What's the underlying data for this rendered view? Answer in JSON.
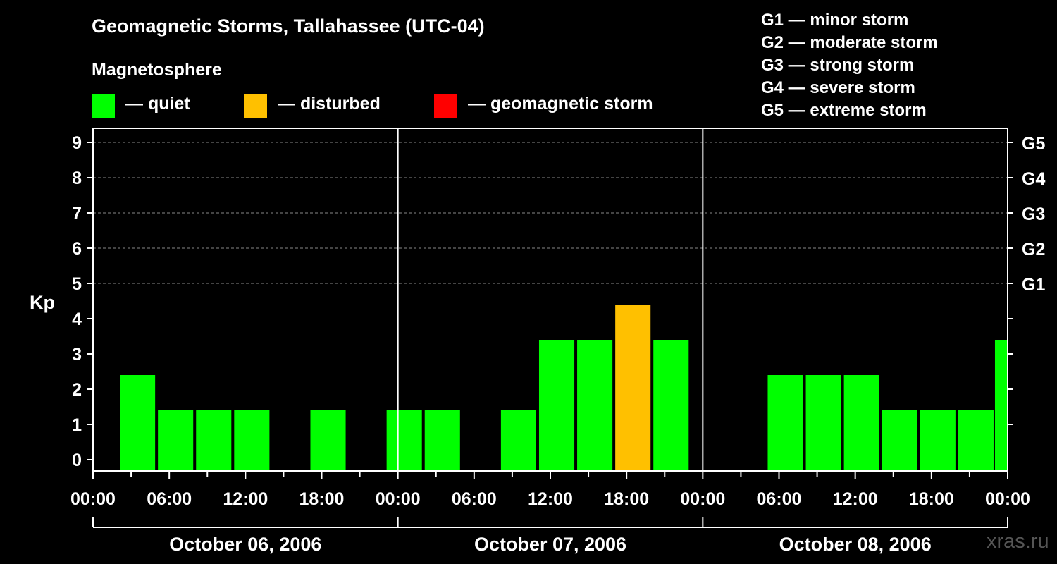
{
  "title": "Geomagnetic Storms, Tallahassee (UTC-04)",
  "magnetosphere_label": "Magnetosphere",
  "legend": [
    {
      "label": "— quiet",
      "color": "#00ff00"
    },
    {
      "label": "— disturbed",
      "color": "#ffc000"
    },
    {
      "label": "— geomagnetic storm",
      "color": "#ff0000"
    }
  ],
  "g_legend": [
    "G1 — minor storm",
    "G2 — moderate storm",
    "G3 — strong storm",
    "G4 — severe storm",
    "G5 — extreme storm"
  ],
  "watermark": "xras.ru",
  "colors": {
    "quiet": "#00ff00",
    "disturbed": "#ffc000",
    "storm": "#ff0000",
    "grid": "#888888"
  },
  "chart_data": {
    "type": "bar",
    "title": "Geomagnetic Storms, Tallahassee (UTC-04)",
    "ylabel": "Kp",
    "ylim": [
      0,
      9
    ],
    "y_ticks": [
      "0",
      "1",
      "2",
      "3",
      "4",
      "5",
      "6",
      "7",
      "8",
      "9"
    ],
    "g_scale": [
      {
        "kp": 5,
        "label": "G1"
      },
      {
        "kp": 6,
        "label": "G2"
      },
      {
        "kp": 7,
        "label": "G3"
      },
      {
        "kp": 8,
        "label": "G4"
      },
      {
        "kp": 9,
        "label": "G5"
      }
    ],
    "x_range_hours": [
      0,
      72
    ],
    "x_tick_labels": [
      {
        "hour": 0,
        "label": "00:00"
      },
      {
        "hour": 6,
        "label": "06:00"
      },
      {
        "hour": 12,
        "label": "12:00"
      },
      {
        "hour": 18,
        "label": "18:00"
      },
      {
        "hour": 24,
        "label": "00:00"
      },
      {
        "hour": 30,
        "label": "06:00"
      },
      {
        "hour": 36,
        "label": "12:00"
      },
      {
        "hour": 42,
        "label": "18:00"
      },
      {
        "hour": 48,
        "label": "00:00"
      },
      {
        "hour": 54,
        "label": "06:00"
      },
      {
        "hour": 60,
        "label": "12:00"
      },
      {
        "hour": 66,
        "label": "18:00"
      },
      {
        "hour": 72,
        "label": "00:00"
      }
    ],
    "days": [
      {
        "label": "October 06, 2006",
        "start": 0,
        "end": 24
      },
      {
        "label": "October 07, 2006",
        "start": 24,
        "end": 48
      },
      {
        "label": "October 08, 2006",
        "start": 48,
        "end": 72
      }
    ],
    "bars": [
      {
        "start": 2,
        "end": 5,
        "kp": 2,
        "level": "quiet"
      },
      {
        "start": 5,
        "end": 8,
        "kp": 1,
        "level": "quiet"
      },
      {
        "start": 8,
        "end": 11,
        "kp": 1,
        "level": "quiet"
      },
      {
        "start": 11,
        "end": 14,
        "kp": 1,
        "level": "quiet"
      },
      {
        "start": 17,
        "end": 20,
        "kp": 1,
        "level": "quiet"
      },
      {
        "start": 23,
        "end": 26,
        "kp": 1,
        "level": "quiet"
      },
      {
        "start": 26,
        "end": 29,
        "kp": 1,
        "level": "quiet"
      },
      {
        "start": 32,
        "end": 35,
        "kp": 1,
        "level": "quiet"
      },
      {
        "start": 35,
        "end": 38,
        "kp": 3,
        "level": "quiet"
      },
      {
        "start": 38,
        "end": 41,
        "kp": 3,
        "level": "quiet"
      },
      {
        "start": 41,
        "end": 44,
        "kp": 4,
        "level": "disturbed"
      },
      {
        "start": 44,
        "end": 47,
        "kp": 3,
        "level": "quiet"
      },
      {
        "start": 53,
        "end": 56,
        "kp": 2,
        "level": "quiet"
      },
      {
        "start": 56,
        "end": 59,
        "kp": 2,
        "level": "quiet"
      },
      {
        "start": 59,
        "end": 62,
        "kp": 2,
        "level": "quiet"
      },
      {
        "start": 62,
        "end": 65,
        "kp": 1,
        "level": "quiet"
      },
      {
        "start": 65,
        "end": 68,
        "kp": 1,
        "level": "quiet"
      },
      {
        "start": 68,
        "end": 71,
        "kp": 1,
        "level": "quiet"
      },
      {
        "start": 71,
        "end": 72,
        "kp": 3,
        "level": "quiet"
      }
    ]
  }
}
